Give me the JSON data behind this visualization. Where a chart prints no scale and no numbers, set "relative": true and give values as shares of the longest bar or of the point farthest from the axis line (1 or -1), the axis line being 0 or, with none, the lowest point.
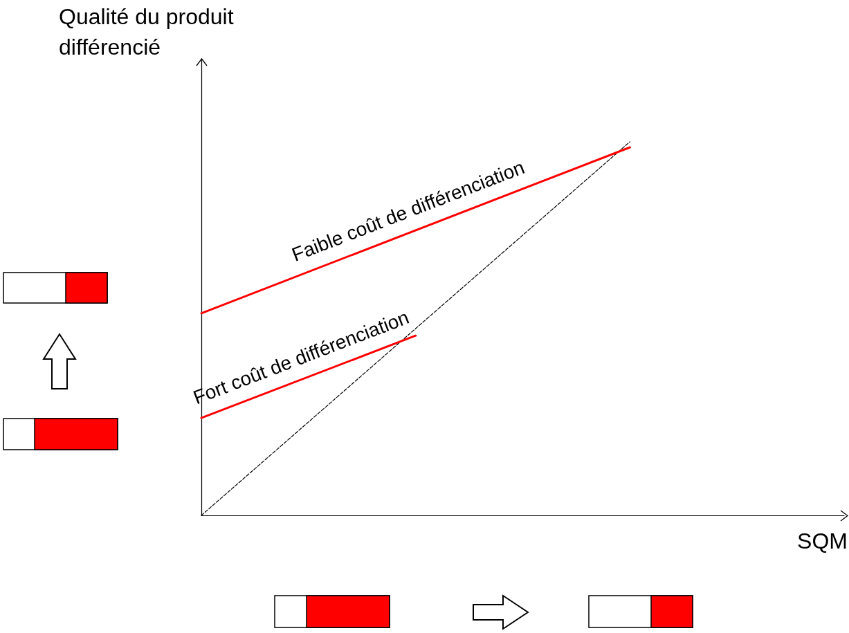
{
  "chart_data": {
    "type": "line",
    "relative": true,
    "ylabel": "Qualité du produit différencié",
    "xlabel": "SQM",
    "marker": "none",
    "categories": [
      null,
      null,
      null,
      null,
      null,
      null,
      null,
      null,
      null,
      null,
      null,
      null,
      null,
      null,
      null,
      null,
      null,
      null,
      null,
      null,
      null,
      null,
      null,
      null,
      null,
      null,
      null,
      null,
      null,
      null,
      null
    ],
    "series": [
      {
        "name": "Faible coût de différenciation",
        "color": "#ff0000",
        "line_style": "solid",
        "values": [
          0.541,
          null,
          null,
          null,
          null,
          null,
          null,
          null,
          null,
          null,
          null,
          null,
          null,
          null,
          null,
          null,
          null,
          null,
          null,
          null,
          0.985,
          null,
          null,
          null,
          null,
          null,
          null,
          null,
          null,
          null,
          null
        ]
      },
      {
        "name": "Fort coût de différenciation",
        "color": "#ff0000",
        "line_style": "solid",
        "values": [
          0.261,
          null,
          null,
          null,
          null,
          null,
          null,
          null,
          null,
          null,
          0.481,
          null,
          null,
          null,
          null,
          null,
          null,
          null,
          null,
          null,
          null,
          null,
          null,
          null,
          null,
          null,
          null,
          null,
          null,
          null,
          null
        ]
      },
      {
        "color": "#000000",
        "line_style": "dashed",
        "values": [
          0,
          null,
          null,
          null,
          null,
          null,
          null,
          null,
          null,
          null,
          null,
          null,
          null,
          null,
          null,
          null,
          null,
          null,
          null,
          null,
          1,
          null,
          null,
          null,
          null,
          null,
          null,
          null,
          null,
          null,
          null
        ]
      }
    ]
  }
}
